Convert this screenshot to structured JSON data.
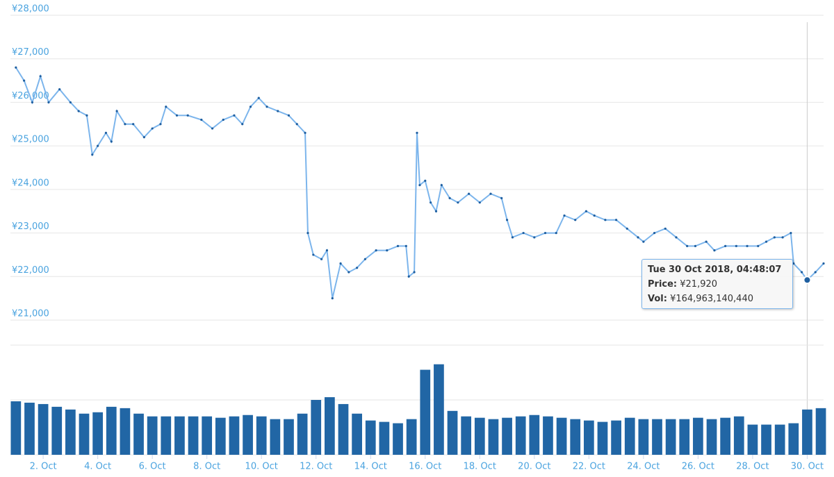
{
  "chart_data": [
    {
      "type": "line",
      "color": "#7cb5ec",
      "marker_color": "#1f5fa0",
      "xlim": [
        0.8,
        30.6
      ],
      "ylim": [
        21000,
        28000
      ],
      "yticks": [
        {
          "value": 21000,
          "label": "¥21,000"
        },
        {
          "value": 22000,
          "label": "¥22,000"
        },
        {
          "value": 23000,
          "label": "¥23,000"
        },
        {
          "value": 24000,
          "label": "¥24,000"
        },
        {
          "value": 25000,
          "label": "¥25,000"
        },
        {
          "value": 26000,
          "label": "¥26,000"
        },
        {
          "value": 27000,
          "label": "¥27,000"
        },
        {
          "value": 28000,
          "label": "¥28,000"
        }
      ],
      "grid": true,
      "x": [
        1.0,
        1.3,
        1.6,
        1.9,
        2.2,
        2.6,
        3.0,
        3.3,
        3.6,
        3.8,
        4.0,
        4.3,
        4.5,
        4.7,
        5.0,
        5.3,
        5.7,
        6.0,
        6.3,
        6.5,
        6.9,
        7.3,
        7.8,
        8.2,
        8.6,
        9.0,
        9.3,
        9.6,
        9.9,
        10.2,
        10.6,
        11.0,
        11.3,
        11.6,
        11.7,
        11.9,
        12.2,
        12.4,
        12.6,
        12.9,
        13.2,
        13.5,
        13.8,
        14.2,
        14.6,
        15.0,
        15.3,
        15.4,
        15.6,
        15.7,
        15.8,
        16.0,
        16.2,
        16.4,
        16.6,
        16.9,
        17.2,
        17.6,
        18.0,
        18.4,
        18.8,
        19.0,
        19.2,
        19.6,
        20.0,
        20.4,
        20.8,
        21.1,
        21.5,
        21.9,
        22.2,
        22.6,
        23.0,
        23.4,
        23.8,
        24.0,
        24.4,
        24.8,
        25.2,
        25.6,
        25.9,
        26.3,
        26.6,
        27.0,
        27.4,
        27.8,
        28.2,
        28.5,
        28.8,
        29.1,
        29.4,
        29.5,
        29.8,
        30.0,
        30.3,
        30.6
      ],
      "series": [
        {
          "name": "Price",
          "values": [
            26800,
            26500,
            26000,
            26600,
            26000,
            26300,
            26000,
            25800,
            25700,
            24800,
            25000,
            25300,
            25100,
            25800,
            25500,
            25500,
            25200,
            25400,
            25500,
            25900,
            25700,
            25700,
            25600,
            25400,
            25600,
            25700,
            25500,
            25900,
            26100,
            25900,
            25800,
            25700,
            25500,
            25300,
            23000,
            22500,
            22400,
            22600,
            21500,
            22300,
            22100,
            22200,
            22400,
            22600,
            22600,
            22700,
            22700,
            22000,
            22100,
            25300,
            24100,
            24200,
            23700,
            23500,
            24100,
            23800,
            23700,
            23900,
            23700,
            23900,
            23800,
            23300,
            22900,
            23000,
            22900,
            23000,
            23000,
            23400,
            23300,
            23500,
            23400,
            23300,
            23300,
            23100,
            22900,
            22800,
            23000,
            23100,
            22900,
            22700,
            22700,
            22800,
            22600,
            22700,
            22700,
            22700,
            22700,
            22800,
            22900,
            22900,
            23000,
            22300,
            22100,
            21920,
            22100,
            22300
          ]
        }
      ],
      "tooltip": {
        "x": 30.0,
        "title": "Tue 30 Oct 2018, 04:48:07",
        "price_label": "Price:",
        "price": "¥21,920",
        "vol_label": "Vol:",
        "vol": "¥164,963,140,440"
      }
    },
    {
      "type": "bar",
      "color": "#2166a5",
      "xlim": [
        0.8,
        30.6
      ],
      "ylim": [
        0,
        400000000000
      ],
      "yticks": [
        0,
        200000000000,
        400000000000
      ],
      "grid": true,
      "xticks": [
        {
          "value": 2,
          "label": "2. Oct"
        },
        {
          "value": 4,
          "label": "4. Oct"
        },
        {
          "value": 6,
          "label": "6. Oct"
        },
        {
          "value": 8,
          "label": "8. Oct"
        },
        {
          "value": 10,
          "label": "10. Oct"
        },
        {
          "value": 12,
          "label": "12. Oct"
        },
        {
          "value": 14,
          "label": "14. Oct"
        },
        {
          "value": 16,
          "label": "16. Oct"
        },
        {
          "value": 18,
          "label": "18. Oct"
        },
        {
          "value": 20,
          "label": "20. Oct"
        },
        {
          "value": 22,
          "label": "22. Oct"
        },
        {
          "value": 24,
          "label": "24. Oct"
        },
        {
          "value": 26,
          "label": "26. Oct"
        },
        {
          "value": 28,
          "label": "28. Oct"
        },
        {
          "value": 30,
          "label": "30. Oct"
        }
      ],
      "x": [
        1.0,
        1.5,
        2.0,
        2.5,
        3.0,
        3.5,
        4.0,
        4.5,
        5.0,
        5.5,
        6.0,
        6.5,
        7.0,
        7.5,
        8.0,
        8.5,
        9.0,
        9.5,
        10.0,
        10.5,
        11.0,
        11.5,
        12.0,
        12.5,
        13.0,
        13.5,
        14.0,
        14.5,
        15.0,
        15.5,
        16.0,
        16.5,
        17.0,
        17.5,
        18.0,
        18.5,
        19.0,
        19.5,
        20.0,
        20.5,
        21.0,
        21.5,
        22.0,
        22.5,
        23.0,
        23.5,
        24.0,
        24.5,
        25.0,
        25.5,
        26.0,
        26.5,
        27.0,
        27.5,
        28.0,
        28.5,
        29.0,
        29.5,
        30.0,
        30.5
      ],
      "series": [
        {
          "name": "Vol",
          "values": [
            195000000000,
            190000000000,
            185000000000,
            175000000000,
            165000000000,
            150000000000,
            155000000000,
            175000000000,
            170000000000,
            150000000000,
            140000000000,
            140000000000,
            140000000000,
            140000000000,
            140000000000,
            135000000000,
            140000000000,
            145000000000,
            140000000000,
            130000000000,
            130000000000,
            150000000000,
            200000000000,
            210000000000,
            185000000000,
            150000000000,
            125000000000,
            120000000000,
            115000000000,
            130000000000,
            310000000000,
            330000000000,
            160000000000,
            140000000000,
            135000000000,
            130000000000,
            135000000000,
            140000000000,
            145000000000,
            140000000000,
            135000000000,
            130000000000,
            125000000000,
            120000000000,
            125000000000,
            135000000000,
            130000000000,
            130000000000,
            130000000000,
            130000000000,
            135000000000,
            130000000000,
            135000000000,
            140000000000,
            110000000000,
            110000000000,
            110000000000,
            115000000000,
            165000000000,
            170000000000
          ]
        }
      ]
    }
  ]
}
